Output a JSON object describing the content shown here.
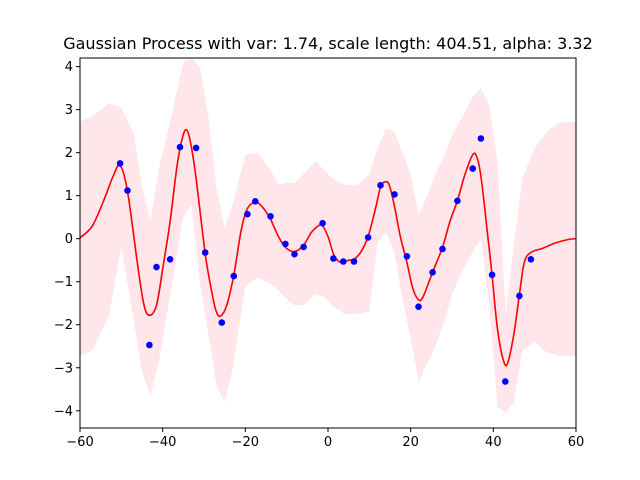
{
  "chart_data": {
    "type": "line",
    "title": "Gaussian Process with var: 1.74, scale length: 404.51, alpha: 3.32",
    "xlabel": "",
    "ylabel": "",
    "xlim": [
      -60,
      60
    ],
    "ylim": [
      -4.4,
      4.2
    ],
    "x_ticks": [
      -60,
      -40,
      -20,
      0,
      20,
      40,
      60
    ],
    "y_ticks": [
      -4,
      -3,
      -2,
      -1,
      0,
      1,
      2,
      3,
      4
    ],
    "grid": false,
    "legend": "none",
    "colors": {
      "mean": "#ff0000",
      "band": "#ffc0cb",
      "points": "#0000ff"
    },
    "observations": {
      "x": [
        -50.3,
        -48.5,
        -43.2,
        -41.5,
        -38.2,
        -35.8,
        -31.9,
        -29.7,
        -25.7,
        -22.8,
        -19.5,
        -17.6,
        -13.9,
        -10.3,
        -8.1,
        -5.9,
        -1.3,
        1.3,
        3.7,
        6.3,
        9.7,
        12.7,
        16.1,
        19.1,
        21.9,
        25.3,
        27.7,
        31.3,
        35.0,
        37.0,
        39.7,
        42.9,
        46.3,
        49.1
      ],
      "y": [
        1.75,
        1.12,
        -2.47,
        -0.66,
        -0.48,
        2.13,
        2.11,
        -0.32,
        -1.95,
        -0.87,
        0.57,
        0.87,
        0.52,
        -0.12,
        -0.36,
        -0.19,
        0.36,
        -0.46,
        -0.53,
        -0.53,
        0.03,
        1.24,
        1.03,
        -0.41,
        -1.58,
        -0.78,
        -0.24,
        0.88,
        1.63,
        2.33,
        -0.84,
        -3.32,
        -1.33,
        -0.48
      ]
    },
    "series": [
      {
        "kind": "mean",
        "x": [
          -60,
          -57,
          -54,
          -52,
          -50.3,
          -48.5,
          -46,
          -44.5,
          -43.2,
          -41.5,
          -40,
          -38.2,
          -36.5,
          -35,
          -34,
          -33,
          -31.9,
          -29.7,
          -28,
          -27,
          -26,
          -24.5,
          -22.8,
          -21,
          -19.5,
          -17.6,
          -16,
          -13.9,
          -12,
          -10.3,
          -8.1,
          -5.9,
          -4,
          -2,
          -1.3,
          0,
          1.3,
          2.5,
          3.7,
          5,
          6.3,
          8,
          9.7,
          11.5,
          12.7,
          13.8,
          14.8,
          16.1,
          17.5,
          19.1,
          20.5,
          21.9,
          23,
          25.3,
          27.7,
          29.5,
          31.3,
          33,
          35,
          36,
          37,
          38.5,
          39.7,
          41,
          42.5,
          43.5,
          45,
          46.3,
          47.5,
          49.1,
          52,
          55,
          58,
          60
        ],
        "y": [
          0.02,
          0.3,
          0.95,
          1.45,
          1.7,
          1.1,
          -0.65,
          -1.55,
          -1.78,
          -1.55,
          -0.7,
          0.4,
          1.7,
          2.42,
          2.5,
          2.1,
          1.4,
          -0.35,
          -1.3,
          -1.7,
          -1.8,
          -1.55,
          -0.85,
          0.2,
          0.7,
          0.85,
          0.75,
          0.45,
          0.05,
          -0.2,
          -0.3,
          -0.15,
          0.15,
          0.32,
          0.3,
          0.05,
          -0.35,
          -0.52,
          -0.55,
          -0.5,
          -0.48,
          -0.3,
          0.05,
          0.7,
          1.2,
          1.32,
          1.25,
          0.75,
          0.05,
          -0.55,
          -1.15,
          -1.42,
          -1.35,
          -0.78,
          -0.2,
          0.4,
          0.88,
          1.45,
          1.95,
          1.9,
          1.45,
          0.2,
          -0.85,
          -2.1,
          -2.85,
          -2.88,
          -2.2,
          -1.3,
          -0.55,
          -0.32,
          -0.22,
          -0.1,
          -0.02,
          0.0
        ]
      },
      {
        "kind": "band",
        "x": [
          -60,
          -57,
          -53,
          -50,
          -47,
          -45,
          -43,
          -41,
          -38,
          -35,
          -33,
          -31,
          -29,
          -27,
          -25,
          -23,
          -20,
          -17,
          -14,
          -12,
          -10,
          -8,
          -6,
          -3,
          -1,
          1,
          4,
          7,
          10,
          12,
          14,
          16,
          18,
          20,
          22,
          24,
          26,
          28,
          30,
          32,
          35,
          37,
          39,
          41,
          43,
          45,
          47,
          50,
          53,
          56,
          60
        ],
        "upper": [
          2.72,
          2.85,
          3.15,
          3.05,
          2.45,
          1.2,
          0.4,
          1.6,
          2.8,
          4.1,
          4.2,
          4.0,
          2.9,
          1.2,
          0.25,
          0.8,
          1.95,
          2.0,
          1.6,
          1.25,
          1.3,
          1.3,
          1.5,
          1.8,
          1.6,
          1.4,
          1.25,
          1.25,
          1.5,
          2.1,
          2.55,
          2.5,
          2.0,
          1.5,
          0.55,
          1.0,
          1.5,
          1.9,
          2.4,
          2.75,
          3.3,
          3.5,
          3.1,
          1.8,
          -1.75,
          -0.1,
          1.4,
          2.1,
          2.5,
          2.7,
          2.72
        ],
        "lower": [
          -2.72,
          -2.6,
          -1.8,
          -0.2,
          -1.9,
          -3.1,
          -3.65,
          -2.9,
          -1.2,
          0.5,
          0.8,
          -1.0,
          -2.2,
          -3.4,
          -3.8,
          -3.0,
          -1.1,
          -0.9,
          -1.05,
          -1.2,
          -1.4,
          -1.55,
          -1.55,
          -1.3,
          -1.35,
          -1.55,
          -1.75,
          -1.75,
          -1.7,
          -0.1,
          0.15,
          -0.3,
          -1.4,
          -2.3,
          -3.35,
          -2.9,
          -2.5,
          -1.95,
          -1.3,
          -0.85,
          -0.3,
          0.0,
          -1.5,
          -3.9,
          -4.05,
          -3.8,
          -2.6,
          -2.4,
          -2.65,
          -2.72,
          -2.72
        ]
      }
    ]
  }
}
